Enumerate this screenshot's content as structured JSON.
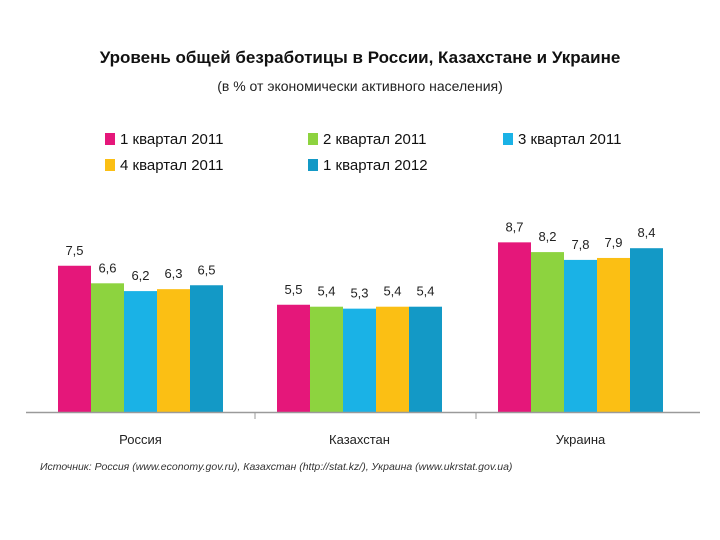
{
  "chart_data": {
    "type": "bar",
    "title": "Уровень общей безработицы в России, Казахстане и Украине",
    "subtitle": "(в % от экономически активного населения)",
    "categories": [
      "Россия",
      "Казахстан",
      "Украина"
    ],
    "series": [
      {
        "name": "1 квартал 2011",
        "color": "#e5177a",
        "values": [
          7.5,
          5.5,
          8.7
        ],
        "labels": [
          "7,5",
          "5,5",
          "8,7"
        ]
      },
      {
        "name": "2 квартал 2011",
        "color": "#8dd33f",
        "values": [
          6.6,
          5.4,
          8.2
        ],
        "labels": [
          "6,6",
          "5,4",
          "8,2"
        ]
      },
      {
        "name": "3 квартал 2011",
        "color": "#1ab2e6",
        "values": [
          6.2,
          5.3,
          7.8
        ],
        "labels": [
          "6,2",
          "5,3",
          "7,8"
        ]
      },
      {
        "name": "4 квартал 2011",
        "color": "#fbbf14",
        "values": [
          6.3,
          5.4,
          7.9
        ],
        "labels": [
          "6,3",
          "5,4",
          "7,9"
        ]
      },
      {
        "name": "1 квартал 2012",
        "color": "#1399c6",
        "values": [
          6.5,
          5.4,
          8.4
        ],
        "labels": [
          "6,5",
          "5,4",
          "8,4"
        ]
      }
    ],
    "ylim": [
      0,
      10
    ],
    "grid": false,
    "legend_position": "top"
  },
  "source": "Источник: Россия (www.economy.gov.ru), Казахстан (http://stat.kz/), Украина (www.ukrstat.gov.ua)"
}
